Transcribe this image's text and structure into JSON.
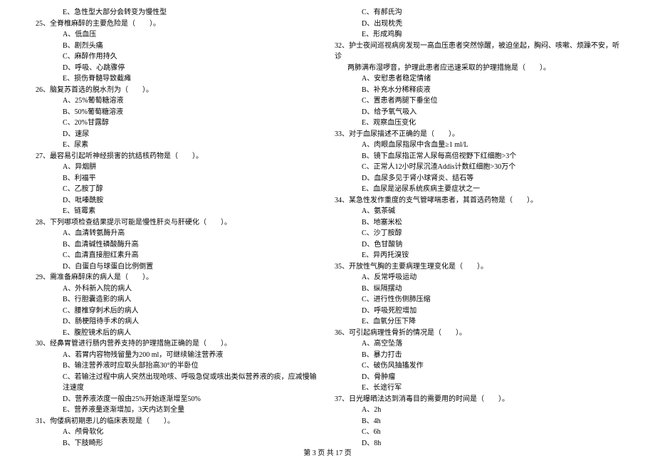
{
  "footer": "第 3 页 共 17 页",
  "left": {
    "pre_e": "E、急性型大部分会转变为慢性型",
    "q25": {
      "stem": "25、全脊椎麻醉的主要危险是（　　）。",
      "opts": [
        "A、低血压",
        "B、剧烈头痛",
        "C、麻醉作用持久",
        "D、呼吸、心跳骤停",
        "E、损伤脊髓导致截瘫"
      ]
    },
    "q26": {
      "stem": "26、脑复苏首选的脱水剂为（　　）。",
      "opts": [
        "A、25%葡萄糖溶液",
        "B、50%葡萄糖溶液",
        "C、20%甘露醇",
        "D、速尿",
        "E、尿素"
      ]
    },
    "q27": {
      "stem": "27、最容易引起听神经损害的抗结核药物是（　　）。",
      "opts": [
        "A、异烟肼",
        "B、利福平",
        "C、乙胺丁醇",
        "D、吡嗪酰胺",
        "E、链霉素"
      ]
    },
    "q28": {
      "stem": "28、下列哪项检查结果提示可能是慢性肝炎与肝硬化（　　）。",
      "opts": [
        "A、血清转氨酶升高",
        "B、血清碱性磷酸酶升高",
        "C、血清直接胆红素升高",
        "D、白蛋白与球蛋白比例倒置"
      ]
    },
    "q29": {
      "stem": "29、需准备麻醉床的病人是（　　）。",
      "opts": [
        "A、外科新入院的病人",
        "B、行胆囊造影的病人",
        "C、腰椎穿刺术后的病人",
        "D、肠梗阻待手术的病人",
        "E、腹腔镜术后的病人"
      ]
    },
    "q30": {
      "stem": "30、经鼻胃管进行肠内营养支持的护理措施正确的是（　　）。",
      "opts": [
        "A、若胃内容物残留量为200 ml，可继续输注营养液",
        "B、输注营养液时应取头部抬高30°的半卧位",
        "C、若输注过程中病人突然出现呛咳、呼吸急促或咳出类似营养液的痰，应减慢输注速度",
        "D、营养液浓度一般由25%开始逐渐增至50%",
        "E、营养液量逐渐增加，3天内达到全量"
      ]
    },
    "q31": {
      "stem": "31、佝偻病初期患儿的临床表现是（　　）。",
      "opts": [
        "A、颅骨软化",
        "B、下肢畸形"
      ]
    }
  },
  "right": {
    "pre": [
      "C、有郝氏沟",
      "D、出现枕秃",
      "E、形成鸡胸"
    ],
    "q32": {
      "stem": "32、护士夜间巡视病房发现一高血压患者突然惊醒，被迫坐起，胸闷、咳嗽、烦躁不安，听诊",
      "cont": "两肺满布湿啰音，护理此患者应迅速采取的护理措施是（　　）。",
      "opts": [
        "A、安慰患者稳定情绪",
        "B、补充水分稀释痰液",
        "C、置患者两腿下垂坐位",
        "D、给予氧气吸入",
        "E、观察血压变化"
      ]
    },
    "q33": {
      "stem": "33、对于血尿描述不正确的是（　　）。",
      "opts": [
        "A、肉眼血尿指尿中含血量≥1 ml/L",
        "B、镜下血尿指正常人尿每高倍视野下红细胞>3个",
        "C、正常人12小时尿沉渣Addis计数红细胞>30万个",
        "D、血尿多见于肾小球肾炎、结石等",
        "E、血尿是泌尿系统疾病主要症状之一"
      ]
    },
    "q34": {
      "stem": "34、某急性发作重度的支气管哮喘患者，其首选药物是（　　）。",
      "opts": [
        "A、氨茶碱",
        "B、地塞米松",
        "C、沙丁胺醇",
        "D、色甘酸钠",
        "E、异丙托溴铵"
      ]
    },
    "q35": {
      "stem": "35、开放性气胸的主要病理生理变化是（　　）。",
      "opts": [
        "A、反常呼吸运动",
        "B、纵隔摆动",
        "C、进行性伤侧肺压缩",
        "D、呼吸死腔增加",
        "E、血氧分压下降"
      ]
    },
    "q36": {
      "stem": "36、可引起病理性骨折的情况是（　　）。",
      "opts": [
        "A、高空坠落",
        "B、暴力打击",
        "C、破伤风抽搐发作",
        "D、骨肿瘤",
        "E、长途行军"
      ]
    },
    "q37": {
      "stem": "37、日光曝晒法达到消毒目的需要用的时间是（　　）。",
      "opts": [
        "A、2h",
        "B、4h",
        "C、6h",
        "D、8h"
      ]
    }
  }
}
